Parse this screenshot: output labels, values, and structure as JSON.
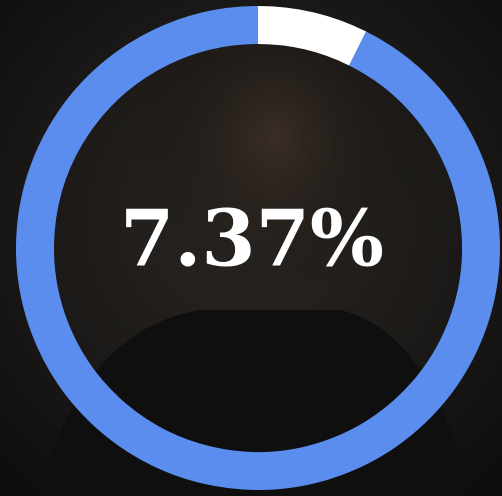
{
  "chart_data": {
    "type": "donut",
    "values": [
      7.37,
      92.63
    ],
    "value_labels": [
      "7.37%",
      null
    ],
    "colors": [
      "#ffffff",
      "#5b8def"
    ]
  }
}
